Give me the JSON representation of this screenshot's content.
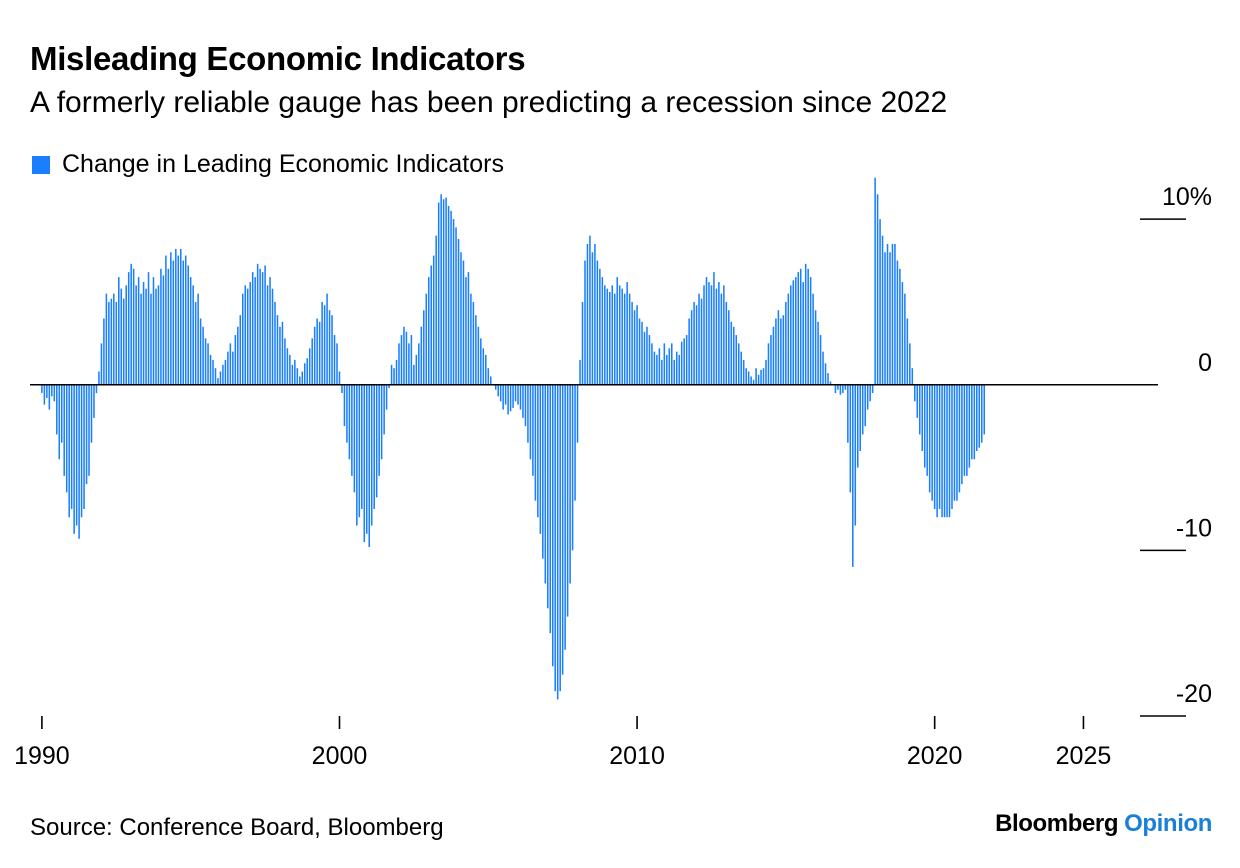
{
  "header": {
    "title": "Misleading Economic Indicators",
    "subtitle": "A formerly reliable gauge has been predicting a recession since 2022"
  },
  "legend": {
    "label": "Change in Leading Economic Indicators",
    "color": "#1a7fff"
  },
  "footer": {
    "source": "Source: Conference Board, Bloomberg",
    "brand_main": "Bloomberg",
    "brand_sub": "Opinion",
    "brand_sub_color": "#1a7fdb"
  },
  "chart_data": {
    "type": "bar",
    "title": "Misleading Economic Indicators",
    "subtitle": "A formerly reliable gauge has been predicting a recession since 2022",
    "series": [
      {
        "name": "Change in Leading Economic Indicators",
        "color": "#1a7fff"
      }
    ],
    "y_unit": "%",
    "ylim": [
      -20,
      12
    ],
    "y_ticks": [
      {
        "value": 10,
        "label": "10%"
      },
      {
        "value": 0,
        "label": "0"
      },
      {
        "value": -10,
        "label": "-10"
      },
      {
        "value": -20,
        "label": "-20"
      }
    ],
    "xlim": [
      1989.6,
      2026.9
    ],
    "x_ticks": [
      {
        "value": 1990,
        "label": "1990"
      },
      {
        "value": 2000,
        "label": "2000"
      },
      {
        "value": 2010,
        "label": "2010"
      },
      {
        "value": 2020,
        "label": "2020"
      },
      {
        "value": 2025,
        "label": "2025"
      }
    ],
    "x_start": 1990.0,
    "x_step": 0.08333,
    "values": [
      -0.5,
      -1.2,
      -0.8,
      -1.5,
      -0.7,
      -1.0,
      -3.0,
      -4.5,
      -3.5,
      -5.5,
      -6.5,
      -8.0,
      -7.5,
      -9.0,
      -8.5,
      -9.3,
      -8.0,
      -7.5,
      -6.0,
      -5.5,
      -3.5,
      -2.0,
      -0.5,
      0.8,
      2.5,
      4.0,
      5.5,
      5.0,
      5.2,
      5.5,
      5.0,
      6.5,
      5.8,
      5.2,
      6.0,
      6.8,
      7.3,
      7.0,
      6.0,
      6.5,
      5.5,
      6.2,
      5.8,
      6.8,
      5.5,
      6.5,
      5.8,
      6.0,
      7.0,
      6.6,
      7.8,
      7.0,
      8.0,
      7.5,
      8.2,
      7.8,
      8.2,
      7.5,
      7.8,
      7.2,
      6.5,
      6.0,
      5.0,
      5.5,
      4.0,
      3.5,
      2.8,
      2.5,
      1.8,
      1.5,
      1.0,
      0.4,
      0.8,
      1.2,
      1.5,
      2.0,
      2.5,
      2.0,
      3.0,
      3.5,
      4.2,
      5.5,
      6.0,
      5.8,
      6.2,
      6.8,
      6.5,
      7.3,
      7.0,
      6.8,
      7.2,
      6.0,
      6.5,
      5.8,
      5.0,
      4.2,
      3.5,
      3.8,
      2.8,
      2.2,
      1.8,
      1.2,
      1.5,
      1.0,
      0.5,
      0.8,
      1.3,
      1.6,
      2.2,
      2.8,
      3.5,
      4.0,
      3.8,
      5.0,
      4.8,
      5.5,
      4.5,
      4.2,
      3.0,
      2.5,
      0.8,
      -0.5,
      -2.5,
      -3.5,
      -4.5,
      -5.5,
      -6.5,
      -8.5,
      -8.0,
      -7.5,
      -9.5,
      -9.0,
      -9.8,
      -8.5,
      -7.5,
      -6.8,
      -5.5,
      -4.5,
      -3.0,
      -1.5,
      -0.2,
      1.2,
      1.0,
      1.5,
      2.5,
      3.0,
      3.5,
      3.2,
      2.5,
      3.0,
      1.2,
      1.8,
      2.5,
      3.5,
      4.5,
      5.5,
      6.5,
      7.2,
      7.8,
      9.0,
      11.0,
      11.5,
      11.2,
      11.3,
      10.8,
      10.5,
      10.0,
      9.5,
      8.8,
      8.0,
      7.5,
      6.5,
      6.8,
      5.5,
      5.0,
      4.2,
      3.5,
      2.8,
      2.2,
      1.8,
      1.0,
      0.5,
      0.0,
      -0.3,
      -0.7,
      -1.0,
      -1.5,
      -1.2,
      -1.8,
      -1.6,
      -1.4,
      -1.0,
      -1.2,
      -1.5,
      -2.0,
      -2.5,
      -3.5,
      -4.5,
      -5.5,
      -7.0,
      -8.0,
      -9.0,
      -10.5,
      -12.0,
      -13.5,
      -15.0,
      -17.0,
      -18.5,
      -19.0,
      -18.5,
      -17.5,
      -16.0,
      -14.0,
      -12.0,
      -10.0,
      -7.0,
      -3.5,
      1.5,
      5.0,
      7.5,
      8.5,
      9.0,
      8.0,
      8.5,
      7.5,
      7.0,
      6.5,
      6.0,
      5.8,
      5.6,
      6.0,
      5.5,
      6.5,
      6.0,
      5.8,
      5.5,
      6.2,
      5.5,
      5.0,
      4.5,
      4.8,
      4.0,
      3.8,
      3.2,
      3.5,
      3.0,
      2.5,
      2.0,
      1.8,
      2.2,
      1.5,
      2.5,
      1.8,
      2.2,
      2.5,
      1.5,
      2.0,
      1.8,
      2.6,
      2.8,
      3.0,
      4.0,
      4.5,
      5.0,
      4.8,
      5.5,
      5.2,
      6.0,
      6.5,
      6.2,
      6.0,
      6.8,
      5.8,
      6.2,
      5.5,
      6.0,
      5.0,
      4.5,
      3.8,
      3.5,
      3.0,
      2.5,
      2.0,
      1.5,
      1.0,
      0.8,
      0.5,
      0.3,
      1.0,
      0.6,
      0.9,
      1.0,
      1.5,
      2.5,
      3.0,
      3.5,
      4.0,
      4.5,
      4.0,
      4.2,
      5.0,
      5.5,
      6.0,
      6.3,
      6.5,
      6.8,
      7.0,
      6.2,
      7.3,
      7.0,
      6.5,
      5.5,
      4.5,
      3.8,
      3.0,
      2.0,
      1.3,
      0.7,
      0.2,
      0.0,
      -0.5,
      -0.3,
      -0.6,
      -0.5,
      -0.3,
      -3.5,
      -6.5,
      -11.0,
      -8.5,
      -5.0,
      -4.0,
      -3.0,
      -2.5,
      -1.5,
      -1.0,
      -0.5,
      12.5,
      11.5,
      10.0,
      9.0,
      8.0,
      8.5,
      8.0,
      8.5,
      8.5,
      7.5,
      7.0,
      6.2,
      5.5,
      4.0,
      2.5,
      1.0,
      -1.0,
      -2.0,
      -3.0,
      -4.0,
      -5.0,
      -5.5,
      -6.5,
      -7.0,
      -7.5,
      -8.0,
      -7.5,
      -8.0,
      -8.0,
      -8.0,
      -8.0,
      -7.5,
      -7.0,
      -7.0,
      -6.5,
      -6.0,
      -5.5,
      -5.5,
      -5.0,
      -4.5,
      -4.5,
      -4.0,
      -3.8,
      -3.5,
      -3.0
    ]
  }
}
